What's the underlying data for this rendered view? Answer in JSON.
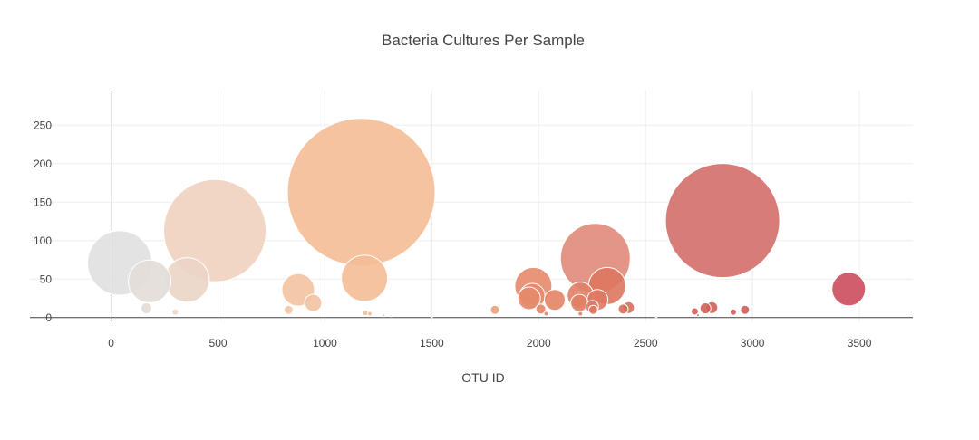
{
  "chart_data": {
    "type": "bubble",
    "title": "Bacteria Cultures Per Sample",
    "xlabel": "OTU ID",
    "ylabel": "",
    "xlim": [
      -380,
      3750
    ],
    "ylim": [
      -5,
      295
    ],
    "x_ticks": [
      0,
      500,
      1000,
      1500,
      2000,
      2500,
      3000,
      3500
    ],
    "y_ticks": [
      0,
      50,
      100,
      150,
      200,
      250
    ],
    "grid": true,
    "legend": "none",
    "colorscale": "Earth-like (light gray → beige → peach → salmon → crimson by OTU ID)",
    "points": [
      {
        "otu_id": 40,
        "value": 71,
        "color": "#e0e0e0"
      },
      {
        "otu_id": 180,
        "value": 47,
        "color": "#e3ddd9"
      },
      {
        "otu_id": 165,
        "value": 12,
        "color": "#e2dcd8"
      },
      {
        "otu_id": 300,
        "value": 7,
        "color": "#ebd8cb"
      },
      {
        "otu_id": 355,
        "value": 49,
        "color": "#ebd5c6"
      },
      {
        "otu_id": 485,
        "value": 113,
        "color": "#efd2bf"
      },
      {
        "otu_id": 830,
        "value": 10,
        "color": "#f3c8a8"
      },
      {
        "otu_id": 875,
        "value": 36,
        "color": "#f3c3a0"
      },
      {
        "otu_id": 945,
        "value": 19,
        "color": "#f3c3a0"
      },
      {
        "otu_id": 1170,
        "value": 163,
        "color": "#f5bc96"
      },
      {
        "otu_id": 1190,
        "value": 6,
        "color": "#f5bc96"
      },
      {
        "otu_id": 1210,
        "value": 5,
        "color": "#f5bc96"
      },
      {
        "otu_id": 1185,
        "value": 51,
        "color": "#f5bc96"
      },
      {
        "otu_id": 1275,
        "value": 3,
        "color": "#f5bc96"
      },
      {
        "otu_id": 1310,
        "value": 2,
        "color": "#f5bc96"
      },
      {
        "otu_id": 1500,
        "value": 1,
        "color": "#f2b38a"
      },
      {
        "otu_id": 1795,
        "value": 10,
        "color": "#e8a07a"
      },
      {
        "otu_id": 1975,
        "value": 41,
        "color": "#e58a6c"
      },
      {
        "otu_id": 1970,
        "value": 28,
        "color": "#e58a6c"
      },
      {
        "otu_id": 1955,
        "value": 25,
        "color": "#e58a6c"
      },
      {
        "otu_id": 2010,
        "value": 11,
        "color": "#e48468"
      },
      {
        "otu_id": 2035,
        "value": 5,
        "color": "#e48468"
      },
      {
        "otu_id": 2075,
        "value": 23,
        "color": "#e38366"
      },
      {
        "otu_id": 2195,
        "value": 29,
        "color": "#e07f66"
      },
      {
        "otu_id": 2190,
        "value": 19,
        "color": "#e07f66"
      },
      {
        "otu_id": 2195,
        "value": 5,
        "color": "#e07f66"
      },
      {
        "otu_id": 2250,
        "value": 14,
        "color": "#de7a64"
      },
      {
        "otu_id": 2255,
        "value": 10,
        "color": "#de7a64"
      },
      {
        "otu_id": 2265,
        "value": 77,
        "color": "#e08b7a"
      },
      {
        "otu_id": 2275,
        "value": 23,
        "color": "#de7862"
      },
      {
        "otu_id": 2320,
        "value": 41,
        "color": "#dd755f"
      },
      {
        "otu_id": 2395,
        "value": 11,
        "color": "#d96e5d"
      },
      {
        "otu_id": 2420,
        "value": 13,
        "color": "#d96e5d"
      },
      {
        "otu_id": 2550,
        "value": 1,
        "color": "#d8695b"
      },
      {
        "otu_id": 2730,
        "value": 8,
        "color": "#d4625a"
      },
      {
        "otu_id": 2745,
        "value": 3,
        "color": "#d4625a"
      },
      {
        "otu_id": 2780,
        "value": 12,
        "color": "#d35f59"
      },
      {
        "otu_id": 2810,
        "value": 13,
        "color": "#d35f59"
      },
      {
        "otu_id": 2860,
        "value": 126,
        "color": "#d46e6c"
      },
      {
        "otu_id": 2910,
        "value": 7,
        "color": "#d15a58"
      },
      {
        "otu_id": 2965,
        "value": 10,
        "color": "#d15a58"
      },
      {
        "otu_id": 3450,
        "value": 37,
        "color": "#cc4c5c"
      }
    ]
  }
}
